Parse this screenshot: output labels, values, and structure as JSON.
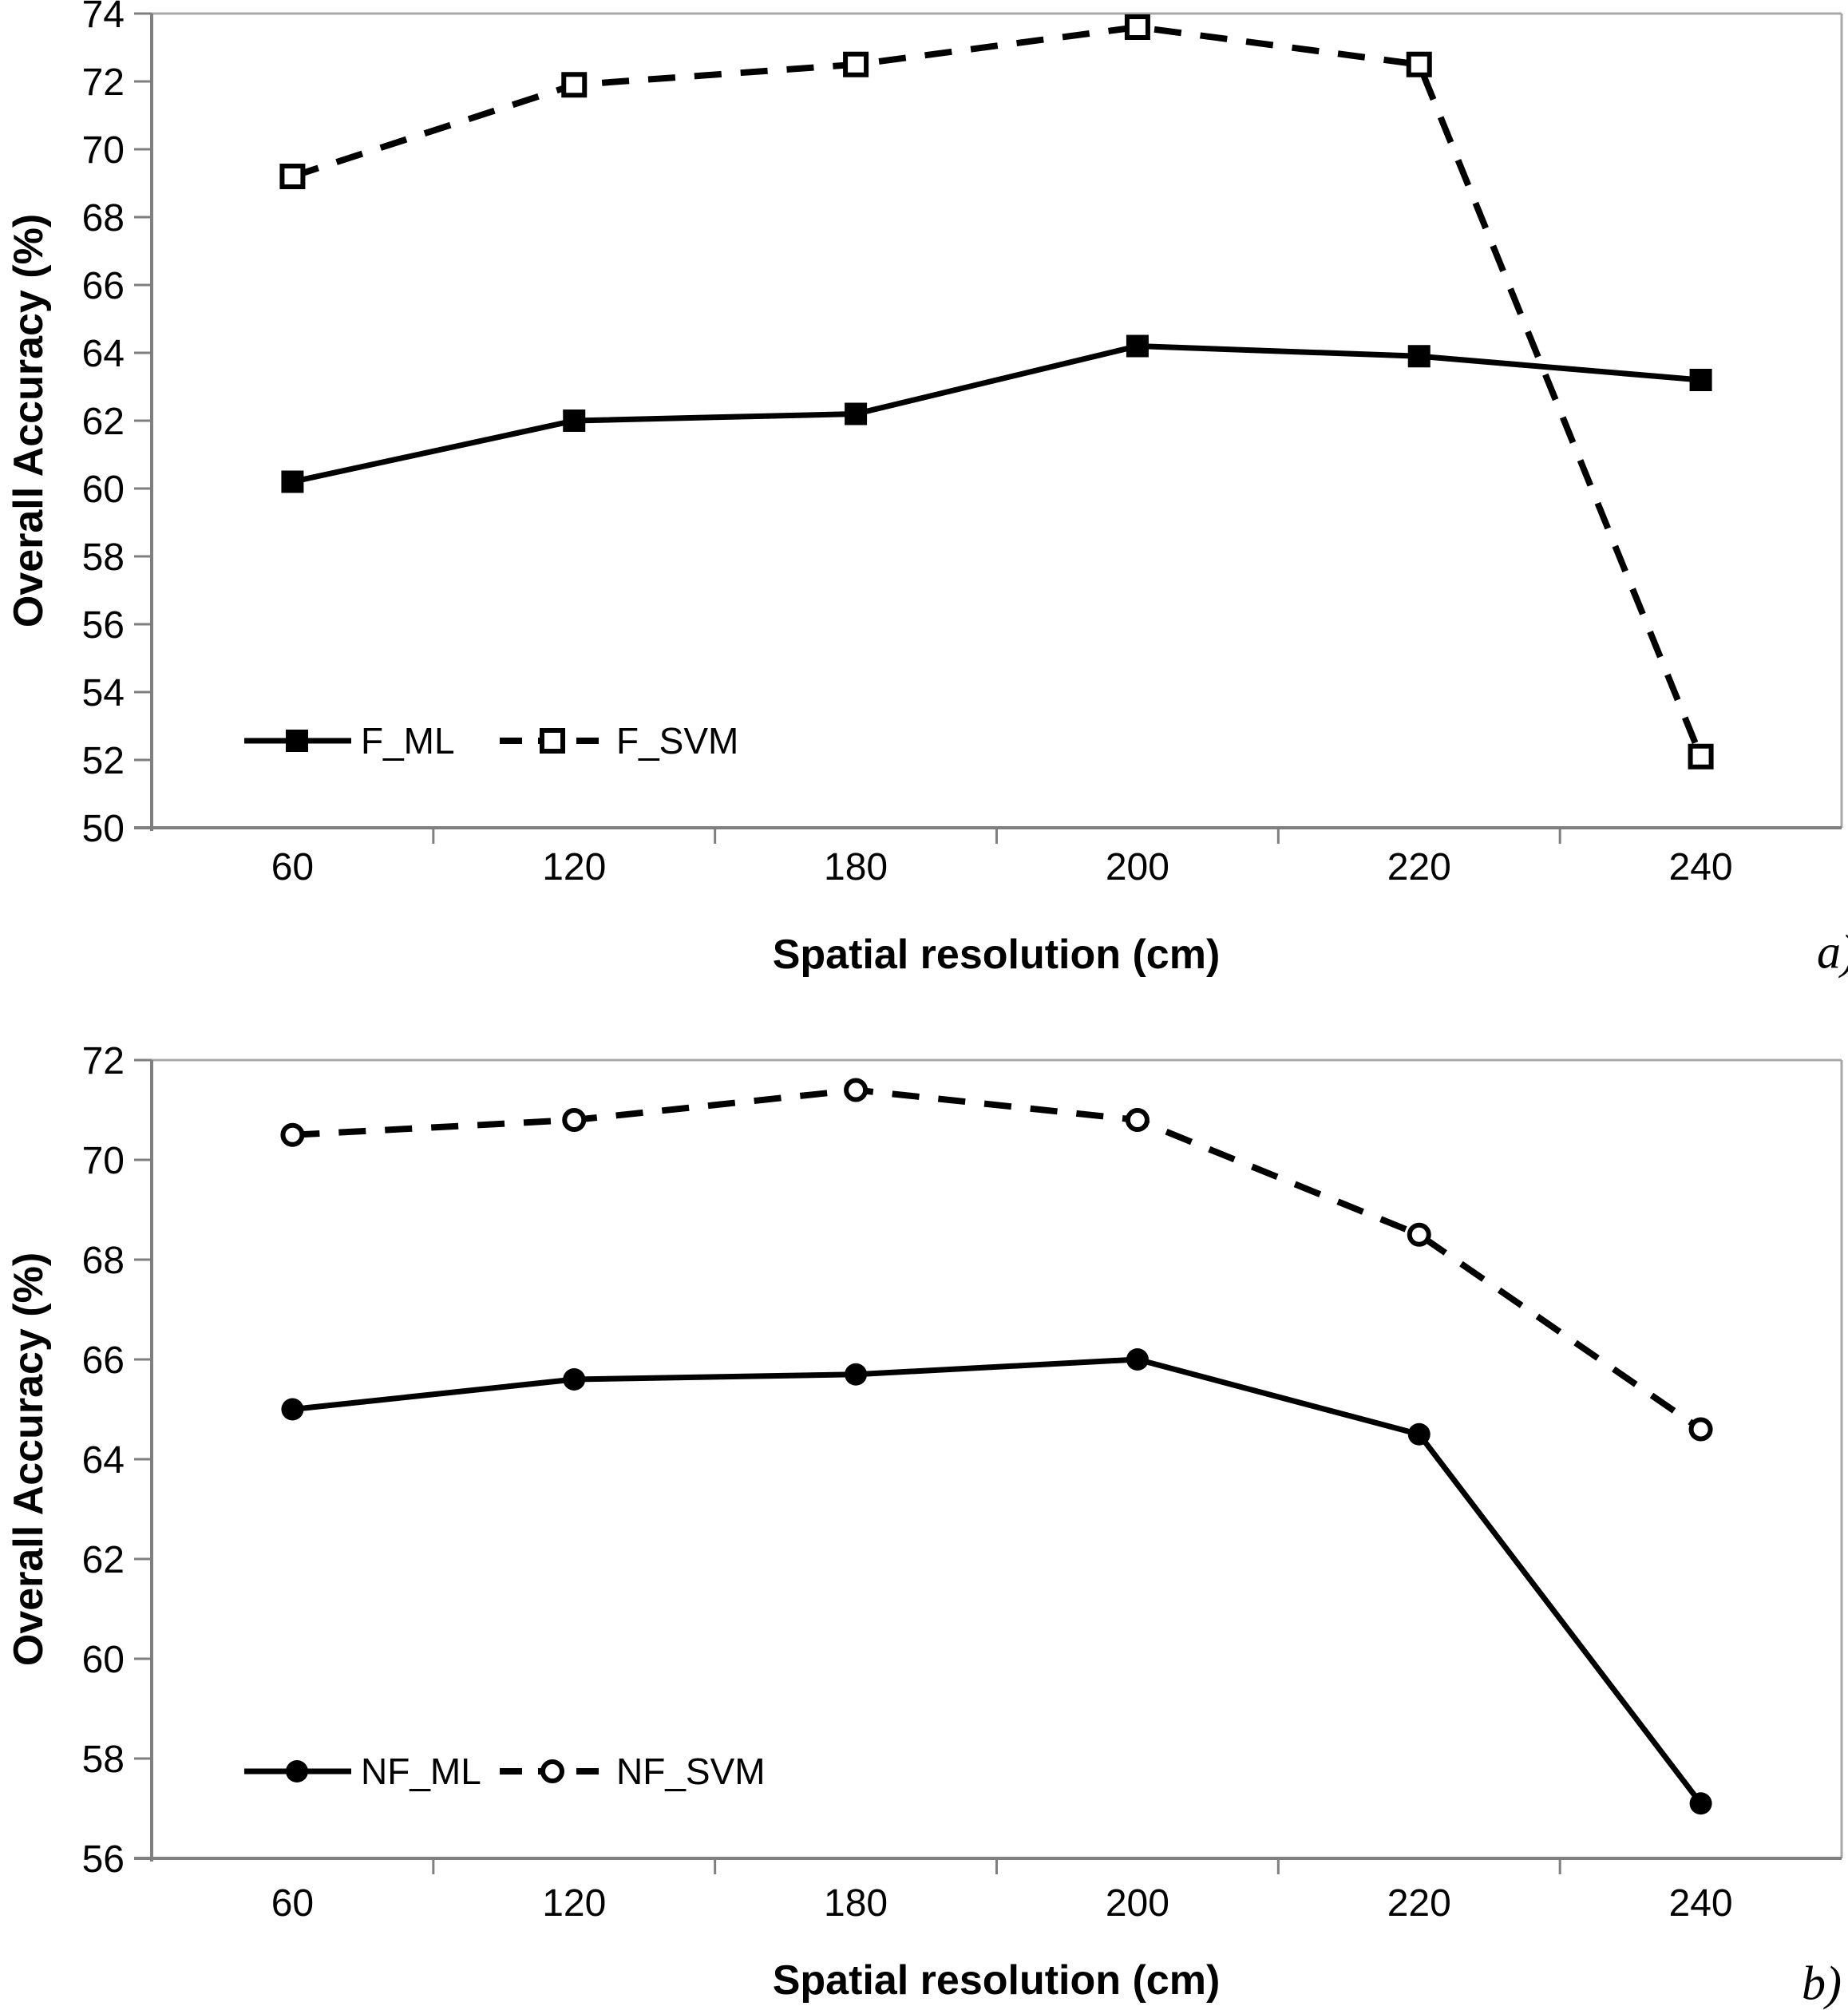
{
  "figure": {
    "background": "#ffffff",
    "description": "Two stacked line charts comparing overall classification accuracy versus spatial resolution"
  },
  "colors": {
    "series": "#000000",
    "axis": "#7f7f7f",
    "plot_border": "#a8a8a8",
    "text": "#000000",
    "background": "#ffffff"
  },
  "chart_data": [
    {
      "type": "line",
      "panel_label": "a)",
      "xlabel": "Spatial resolution (cm)",
      "ylabel": "Overall Accuracy (%)",
      "categories": [
        "60",
        "120",
        "180",
        "200",
        "220",
        "240"
      ],
      "ylim": [
        50,
        74
      ],
      "ytick_step": 2,
      "grid": false,
      "legend_position": "inside-bottom-left",
      "series": [
        {
          "name": "F_ML",
          "line": "solid",
          "marker": "filled-square",
          "values": [
            60.2,
            62.0,
            62.2,
            64.2,
            63.9,
            63.2
          ]
        },
        {
          "name": "F_SVM",
          "line": "dashed",
          "marker": "open-square",
          "values": [
            69.2,
            71.9,
            72.5,
            73.6,
            72.5,
            52.1
          ]
        }
      ]
    },
    {
      "type": "line",
      "panel_label": "b)",
      "xlabel": "Spatial resolution (cm)",
      "ylabel": "Overall Accuracy (%)",
      "categories": [
        "60",
        "120",
        "180",
        "200",
        "220",
        "240"
      ],
      "ylim": [
        56,
        72
      ],
      "ytick_step": 2,
      "grid": false,
      "legend_position": "inside-bottom-left",
      "series": [
        {
          "name": "NF_ML",
          "line": "solid",
          "marker": "filled-circle",
          "values": [
            65.0,
            65.6,
            65.7,
            66.0,
            64.5,
            57.1
          ]
        },
        {
          "name": "NF_SVM",
          "line": "dashed",
          "marker": "open-circle",
          "values": [
            70.5,
            70.8,
            71.4,
            70.8,
            68.5,
            64.6
          ]
        }
      ]
    }
  ]
}
